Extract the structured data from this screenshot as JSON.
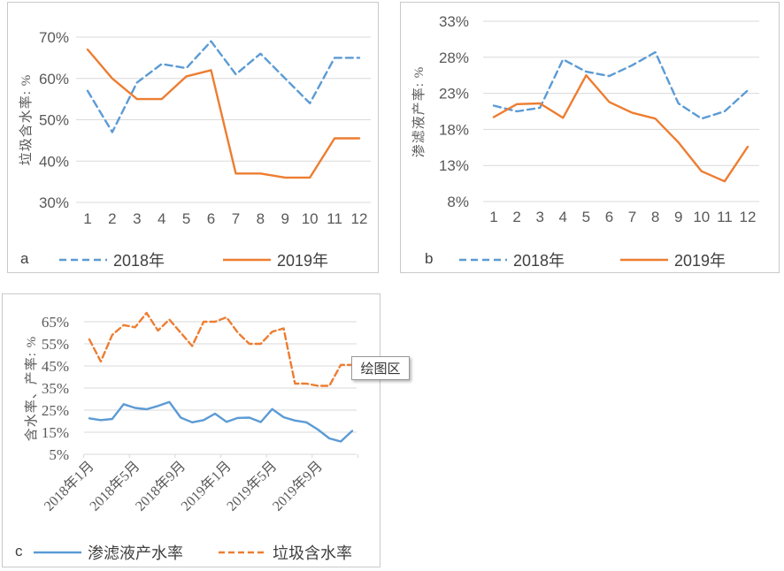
{
  "colors": {
    "series_blue": "#5B9BD5",
    "series_orange": "#ED7D31",
    "gridline": "#D9D9D9",
    "tick_text": "#595959",
    "panel_border": "#C9C9C9",
    "legend_text": "#404040"
  },
  "tooltip": {
    "text": "绘图区"
  },
  "chart_data": [
    {
      "type": "line",
      "panel_label": "a",
      "ylabel": "垃圾含水率: %",
      "ylim": [
        30,
        70
      ],
      "grid": true,
      "legend_position": "bottom",
      "ytick_values": [
        70,
        60,
        50,
        40,
        30
      ],
      "ytick_labels": [
        "70%",
        "60%",
        "50%",
        "40%",
        "30%"
      ],
      "x_labels": [
        "1",
        "2",
        "3",
        "4",
        "5",
        "6",
        "7",
        "8",
        "9",
        "10",
        "11",
        "12"
      ],
      "series": [
        {
          "name": "2018年",
          "color": "#5B9BD5",
          "dash": true,
          "values": [
            57,
            47,
            59,
            63.5,
            62.5,
            69,
            61,
            66,
            60,
            54,
            65,
            65
          ]
        },
        {
          "name": "2019年",
          "color": "#ED7D31",
          "dash": false,
          "values": [
            67,
            60,
            55,
            55,
            60.5,
            62,
            37,
            37,
            36,
            36,
            45.5,
            45.5
          ]
        }
      ]
    },
    {
      "type": "line",
      "panel_label": "b",
      "ylabel": "渗滤液产率: %",
      "ylim": [
        8,
        33
      ],
      "grid": true,
      "legend_position": "bottom",
      "ytick_values": [
        33,
        28,
        23,
        18,
        13,
        8
      ],
      "ytick_labels": [
        "33%",
        "28%",
        "23%",
        "18%",
        "13%",
        "8%"
      ],
      "x_labels": [
        "1",
        "2",
        "3",
        "4",
        "5",
        "6",
        "7",
        "8",
        "9",
        "10",
        "11",
        "12"
      ],
      "series": [
        {
          "name": "2018年",
          "color": "#5B9BD5",
          "dash": true,
          "values": [
            21.3,
            20.5,
            21,
            27.7,
            26,
            25.4,
            26.9,
            28.7,
            21.6,
            19.5,
            20.5,
            23.4
          ]
        },
        {
          "name": "2019年",
          "color": "#ED7D31",
          "dash": false,
          "values": [
            19.7,
            21.5,
            21.6,
            19.6,
            25.5,
            21.8,
            20.3,
            19.5,
            16.2,
            12.2,
            10.8,
            15.6
          ]
        }
      ]
    },
    {
      "type": "line",
      "panel_label": "c",
      "ylabel": "含水率、产率: %",
      "ylim": [
        5,
        65
      ],
      "grid": true,
      "legend_position": "bottom",
      "ytick_values": [
        65,
        55,
        45,
        35,
        25,
        15,
        5
      ],
      "ytick_labels": [
        "65%",
        "55%",
        "45%",
        "35%",
        "25%",
        "15%",
        "5%"
      ],
      "x_labels": [
        "2018年1月",
        "2018年5月",
        "2018年9月",
        "2019年1月",
        "2019年5月",
        "2019年9月"
      ],
      "months_per_xtick": 4,
      "series": [
        {
          "name": "渗滤液产水率",
          "color": "#5B9BD5",
          "dash": false,
          "values": [
            21.3,
            20.5,
            21,
            27.7,
            26,
            25.4,
            26.9,
            28.7,
            21.6,
            19.5,
            20.5,
            23.4,
            19.7,
            21.5,
            21.6,
            19.6,
            25.5,
            21.8,
            20.3,
            19.5,
            16.2,
            12.2,
            10.8,
            15.6
          ]
        },
        {
          "name": "垃圾含水率",
          "color": "#ED7D31",
          "dash": true,
          "values": [
            57,
            47,
            59,
            63.5,
            62.5,
            69,
            61,
            66,
            60,
            54,
            65,
            65,
            67,
            60,
            55,
            55,
            60.5,
            62,
            37,
            37,
            36,
            36,
            45.5,
            45.5
          ]
        }
      ]
    }
  ]
}
